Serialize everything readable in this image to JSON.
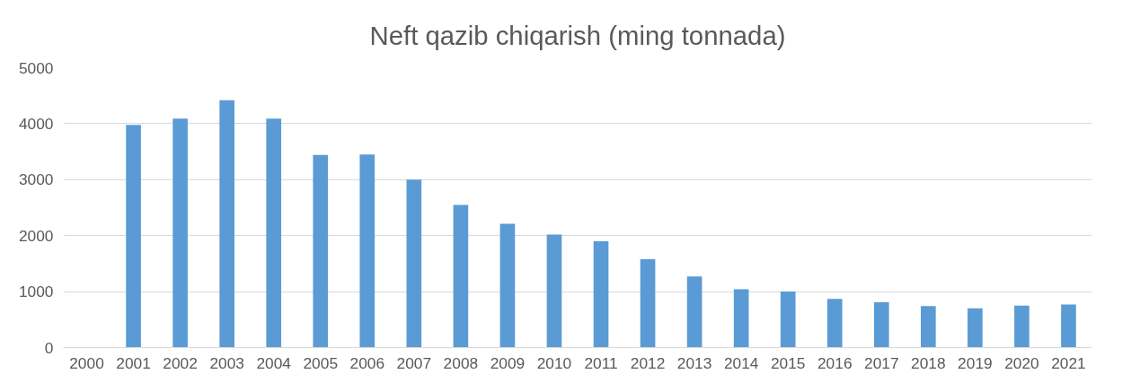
{
  "chart_data": {
    "type": "bar",
    "title": "Neft qazib chiqarish (ming tonnada)",
    "categories": [
      "2000",
      "2001",
      "2002",
      "2003",
      "2004",
      "2005",
      "2006",
      "2007",
      "2008",
      "2009",
      "2010",
      "2011",
      "2012",
      "2013",
      "2014",
      "2015",
      "2016",
      "2017",
      "2018",
      "2019",
      "2020",
      "2021"
    ],
    "values": [
      null,
      3980,
      4090,
      4420,
      4090,
      3440,
      3450,
      3000,
      2550,
      2210,
      2020,
      1900,
      1580,
      1270,
      1040,
      1000,
      870,
      810,
      740,
      700,
      750,
      770
    ],
    "color": "#5b9bd5",
    "ylim": [
      0,
      5000
    ],
    "yticks": [
      0,
      1000,
      2000,
      3000,
      4000,
      5000
    ],
    "grid": "y"
  }
}
